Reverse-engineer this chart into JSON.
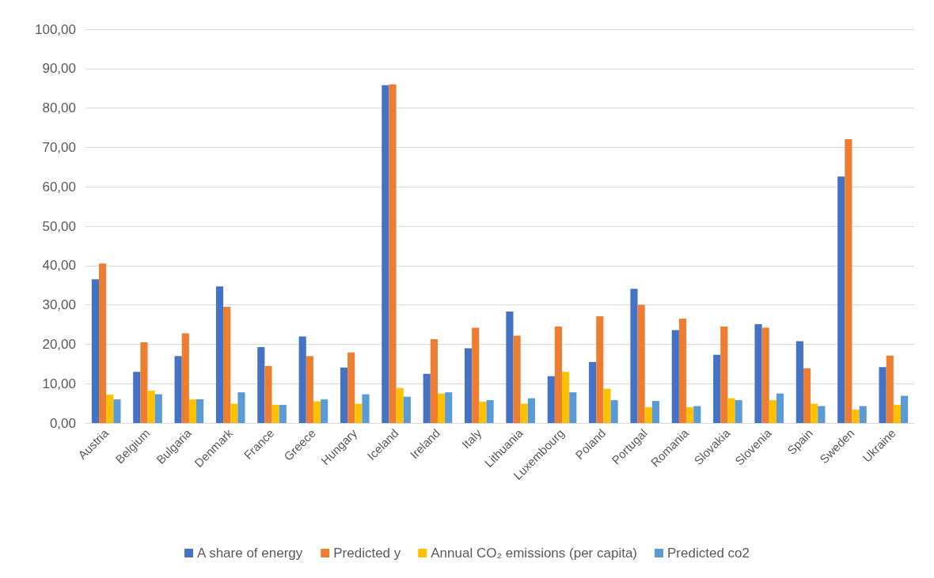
{
  "chart_data": {
    "type": "bar",
    "categories": [
      "Austria",
      "Belgium",
      "Bulgaria",
      "Denmark",
      "France",
      "Greece",
      "Hungary",
      "Iceland",
      "Ireland",
      "Italy",
      "Lithuania",
      "Luxembourg",
      "Poland",
      "Portugal",
      "Romania",
      "Slovakia",
      "Slovenia",
      "Spain",
      "Sweden",
      "Ukraine"
    ],
    "series": [
      {
        "name": "A share of energy",
        "color": "#4472c4",
        "values": [
          36.5,
          13.0,
          17.0,
          34.7,
          19.3,
          22.0,
          14.1,
          85.8,
          12.5,
          19.0,
          28.3,
          11.9,
          15.5,
          34.1,
          23.6,
          17.3,
          25.1,
          20.8,
          62.6,
          14.2
        ]
      },
      {
        "name": "Predicted y",
        "color": "#ed7d31",
        "values": [
          40.5,
          20.5,
          22.8,
          29.5,
          14.5,
          17.0,
          17.9,
          86.0,
          21.3,
          24.2,
          22.2,
          24.5,
          27.1,
          30.0,
          26.5,
          24.5,
          24.2,
          13.9,
          72.1,
          17.1
        ]
      },
      {
        "name": "Annual CO₂ emissions (per capita)",
        "color": "#ffc000",
        "values": [
          7.2,
          8.2,
          6.0,
          4.9,
          4.6,
          5.5,
          4.9,
          8.9,
          7.5,
          5.4,
          4.9,
          13.0,
          8.7,
          4.0,
          4.0,
          6.3,
          5.8,
          4.9,
          3.4,
          4.6
        ]
      },
      {
        "name": "Predicted co2",
        "color": "#5b9bd5",
        "values": [
          6.0,
          7.3,
          6.0,
          7.8,
          4.6,
          6.0,
          7.3,
          6.7,
          7.8,
          5.8,
          6.3,
          7.8,
          5.8,
          5.6,
          4.3,
          5.8,
          7.5,
          4.3,
          4.3,
          6.9
        ]
      }
    ],
    "ylim": [
      0,
      100
    ],
    "yticks": [
      {
        "value": 0,
        "label": "0,00"
      },
      {
        "value": 10,
        "label": "10,00"
      },
      {
        "value": 20,
        "label": "20,00"
      },
      {
        "value": 30,
        "label": "30,00"
      },
      {
        "value": 40,
        "label": "40,00"
      },
      {
        "value": 50,
        "label": "50,00"
      },
      {
        "value": 60,
        "label": "60,00"
      },
      {
        "value": 70,
        "label": "70,00"
      },
      {
        "value": 80,
        "label": "80,00"
      },
      {
        "value": 90,
        "label": "90,00"
      },
      {
        "value": 100,
        "label": "100,00"
      }
    ],
    "grid": "y",
    "legend": "bottom"
  }
}
